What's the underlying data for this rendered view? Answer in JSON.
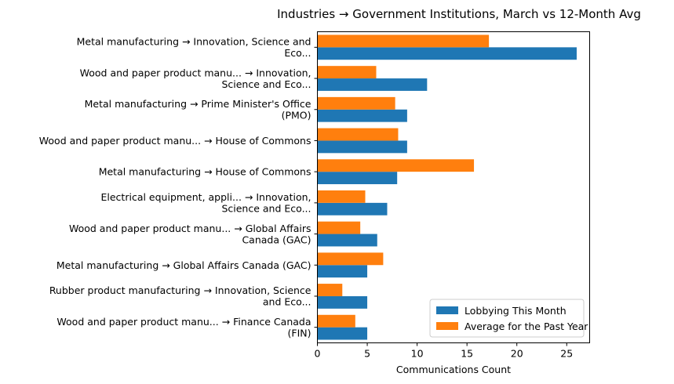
{
  "chart_data": {
    "type": "bar",
    "orientation": "horizontal",
    "title": "Industries → Government Institutions, March vs 12-Month Avg",
    "xlabel": "Communications Count",
    "ylabel": "",
    "xlim": [
      0,
      27.3
    ],
    "xticks": [
      "0",
      "5",
      "10",
      "15",
      "20",
      "25"
    ],
    "grid": false,
    "legend_position": "lower-right",
    "categories": [
      [
        "Metal manufacturing → Innovation, Science and",
        "Eco..."
      ],
      [
        "Wood and paper product manu... → Innovation,",
        "Science and Eco..."
      ],
      [
        "Metal manufacturing → Prime Minister's Office",
        "(PMO)"
      ],
      [
        "Wood and paper product manu... → House of Commons"
      ],
      [
        "Metal manufacturing → House of Commons"
      ],
      [
        "Electrical equipment, appli... → Innovation,",
        "Science and Eco..."
      ],
      [
        "Wood and paper product manu... → Global Affairs",
        "Canada (GAC)"
      ],
      [
        "Metal manufacturing → Global Affairs Canada (GAC)"
      ],
      [
        "Rubber product manufacturing → Innovation, Science",
        "and Eco..."
      ],
      [
        "Wood and paper product manu... → Finance Canada",
        "(FIN)"
      ]
    ],
    "series": [
      {
        "name": "Lobbying This Month",
        "color": "#1f77b4",
        "values": [
          26,
          11,
          9,
          9,
          8,
          7,
          6,
          5,
          5,
          5
        ]
      },
      {
        "name": "Average for the Past Year",
        "color": "#ff7f0e",
        "values": [
          17.2,
          5.9,
          7.8,
          8.1,
          15.7,
          4.8,
          4.3,
          6.6,
          2.5,
          3.8
        ]
      }
    ]
  }
}
